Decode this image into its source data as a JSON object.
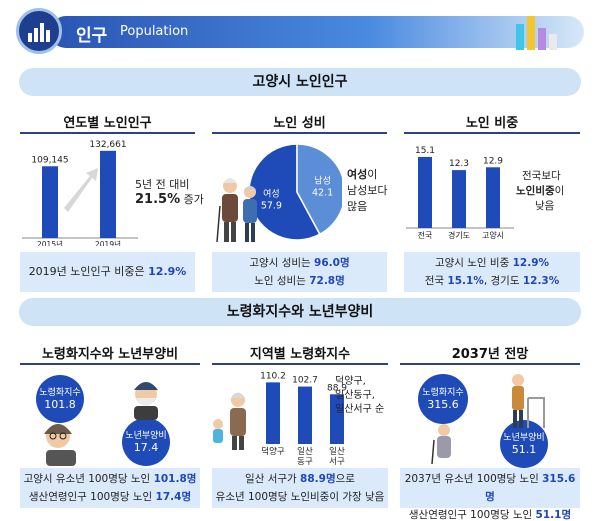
{
  "header": {
    "title": "인구",
    "subtitle": "Population",
    "icon": "bar-chart-icon"
  },
  "section1": {
    "banner": "고양시 노인인구",
    "panel1": {
      "title": "연도별 노인인구",
      "note_line1": "5년 전 대비",
      "note_pct": "21.5%",
      "note_suffix": " 증가",
      "caption_prefix": "2019년 노인인구 비중은 ",
      "caption_value": "12.9%"
    },
    "panel2": {
      "title": "노인 성비",
      "note_l1a": "여성",
      "note_l1b": "이",
      "note_l2": "남성보다",
      "note_l3": "많음",
      "cap1_prefix": "고양시 성비는 ",
      "cap1_value": "96.0명",
      "cap2_prefix": "노인 성비는 ",
      "cap2_value": "72.8명"
    },
    "panel3": {
      "title": "노인 비중",
      "note_l1": "전국보다",
      "note_l2a": "노인비중",
      "note_l2b": "이",
      "note_l3": "낮음",
      "cap1_prefix": "고양시 노인 비중 ",
      "cap1_value": "12.9%",
      "cap2_a": "전국 ",
      "cap2_b": "15.1%",
      "cap2_c": ", 경기도 ",
      "cap2_d": "12.3%"
    }
  },
  "section2": {
    "banner": "노령화지수와 노년부양비",
    "panel4": {
      "title": "노령화지수와 노년부양비",
      "badge1_label": "노령화지수",
      "badge1_value": "101.8",
      "badge2_label": "노년부양비",
      "badge2_value": "17.4",
      "cap1_prefix": "고양시 유소년 100명당 노인 ",
      "cap1_value": "101.8명",
      "cap2_prefix": "생산연령인구 100명당 노인 ",
      "cap2_value": "17.4명"
    },
    "panel5": {
      "title": "지역별 노령화지수",
      "note_l1": "덕양구,",
      "note_l2": "일산동구,",
      "note_l3": "일산서구 순",
      "cap1_prefix": "일산 서구가 ",
      "cap1_value": "88.9명",
      "cap1_suffix": "으로",
      "cap2": "유소년 100명당 노인비중이 가장 낮음"
    },
    "panel6": {
      "title": "2037년 전망",
      "badge1_label": "노령화지수",
      "badge1_value": "315.6",
      "badge2_label": "노년부양비",
      "badge2_value": "51.1",
      "cap1_prefix": "2037년 유소년 100명당 노인 ",
      "cap1_value": "315.6명",
      "cap2_prefix": "생산연령인구 100명당 노인 ",
      "cap2_value": "51.1명"
    }
  },
  "colors": {
    "primary": "#1f4bb8",
    "dark": "#2d3f8f",
    "light": "#dbeafa",
    "banner": "#cfe3f7",
    "male": "#5b8ed6"
  },
  "chart_data": [
    {
      "type": "bar",
      "title": "연도별 노인인구",
      "categories": [
        "2015년",
        "2019년"
      ],
      "values": [
        109145,
        132661
      ],
      "value_labels": [
        "109,145",
        "132,661"
      ]
    },
    {
      "type": "pie",
      "title": "노인 성비",
      "labels": [
        "여성",
        "남성"
      ],
      "values": [
        57.9,
        42.1
      ]
    },
    {
      "type": "bar",
      "title": "노인 비중",
      "categories": [
        "전국",
        "경기도",
        "고양시"
      ],
      "values": [
        15.1,
        12.3,
        12.9
      ]
    },
    {
      "type": "bar",
      "title": "지역별 노령화지수",
      "categories": [
        "덕양구",
        "일산\n동구",
        "일산\n서구"
      ],
      "values": [
        110.2,
        102.7,
        88.9
      ]
    }
  ]
}
